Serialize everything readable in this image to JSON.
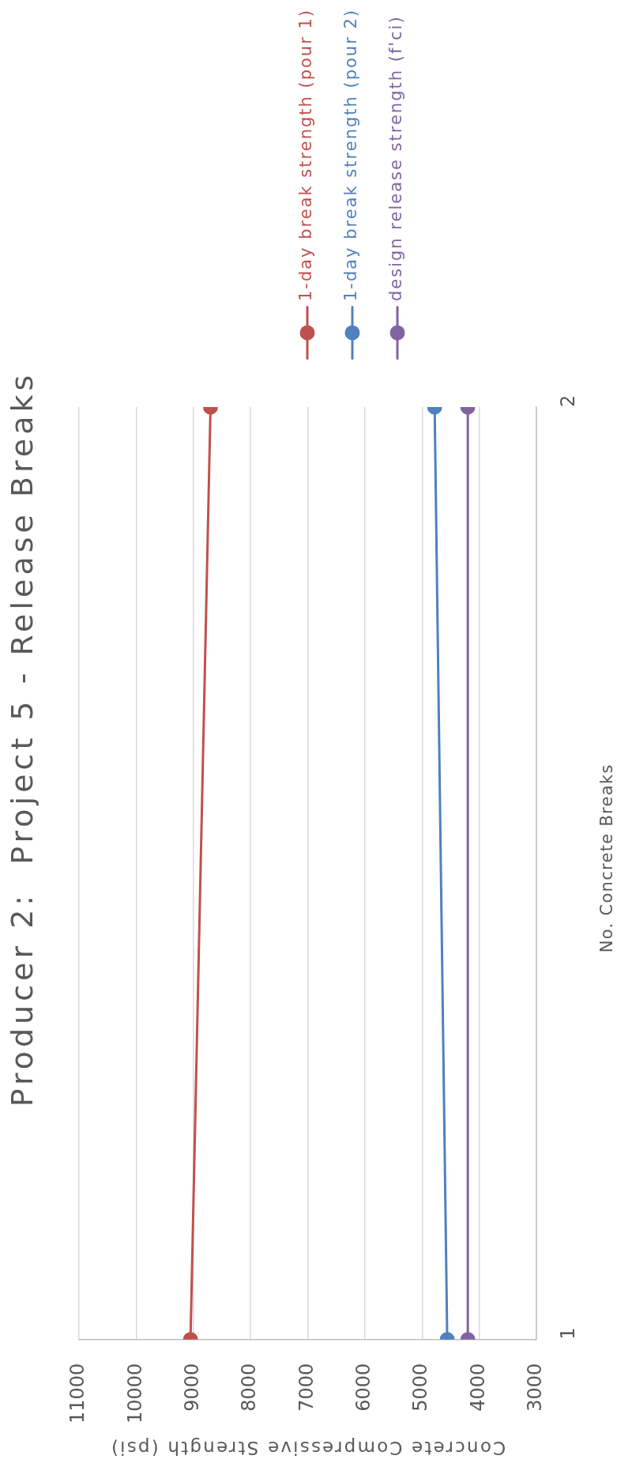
{
  "chart_data": {
    "type": "line",
    "title": "Producer 2:  Project 5 - Release Breaks",
    "xlabel": "Concrete Compressive Strength (psi)",
    "ylabel": "No. Concrete Breaks",
    "series": [
      {
        "name": "1-day break strength (pour 1)",
        "color": "#c0504d",
        "x": [
          9050,
          8700
        ],
        "values": [
          1,
          2
        ]
      },
      {
        "name": "1-day break strength (pour 2)",
        "color": "#4f81bd",
        "x": [
          4560,
          4780
        ],
        "values": [
          1,
          2
        ]
      },
      {
        "name": "design release strength (f'ci)",
        "color": "#8064a2",
        "x": [
          4200,
          4200
        ],
        "values": [
          1,
          2
        ]
      }
    ],
    "xlim": [
      11000,
      3000
    ],
    "xticks": [
      11000,
      10000,
      9000,
      8000,
      7000,
      6000,
      5000,
      4000,
      3000
    ],
    "ylim": [
      1,
      2
    ],
    "yticks": [
      1,
      2
    ],
    "grid": "x",
    "legend": "top",
    "marker": "circle"
  }
}
